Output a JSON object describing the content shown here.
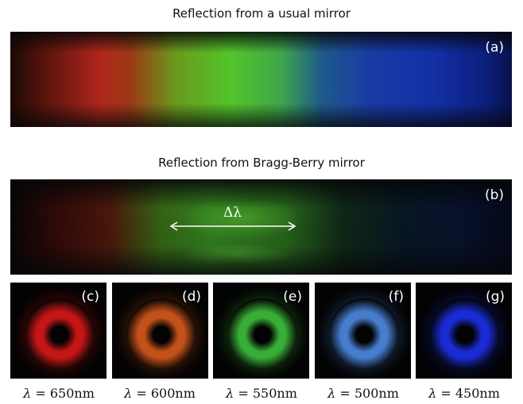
{
  "figure": {
    "title_a": "Reflection from a usual mirror",
    "title_b": "Reflection from Bragg-Berry mirror",
    "label_a": "(a)",
    "label_b": "(b)",
    "bandwidth_label": "Δλ"
  },
  "tiles": [
    {
      "label": "(c)",
      "lambda_symbol": "λ",
      "eq": " = 650nm",
      "color": "#d01818"
    },
    {
      "label": "(d)",
      "lambda_symbol": "λ",
      "eq": " = 600nm",
      "color": "#d0561c"
    },
    {
      "label": "(e)",
      "lambda_symbol": "λ",
      "eq": " = 550nm",
      "color": "#3cb83a"
    },
    {
      "label": "(f)",
      "lambda_symbol": "λ",
      "eq": " = 500nm",
      "color": "#4a84d8"
    },
    {
      "label": "(g)",
      "lambda_symbol": "λ",
      "eq": " = 450nm",
      "color": "#1c2ee0"
    }
  ]
}
